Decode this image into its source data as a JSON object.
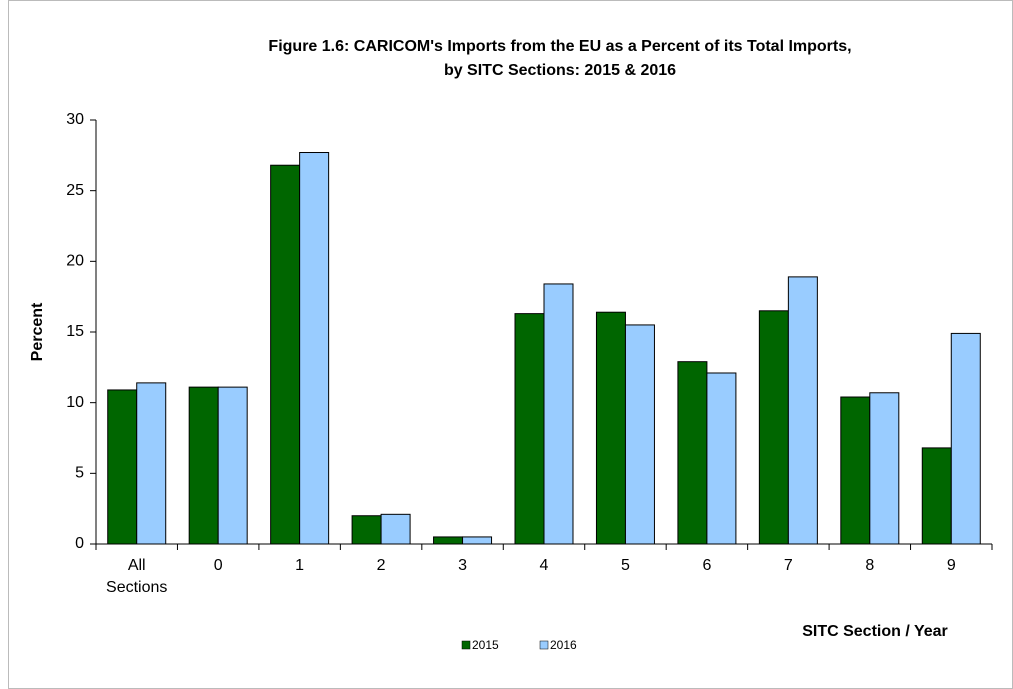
{
  "chart_data": {
    "type": "bar",
    "title": [
      "Figure 1.6: CARICOM's  Imports from the EU as a Percent of its Total Imports,",
      "by SITC Sections: 2015 & 2016"
    ],
    "y_label": "Percent",
    "x_label": "SITC Section / Year",
    "categories": [
      "All Sections",
      "0",
      "1",
      "2",
      "3",
      "4",
      "5",
      "6",
      "7",
      "8",
      "9"
    ],
    "series": [
      {
        "name": "2015",
        "color": "#006600",
        "values": [
          10.9,
          11.1,
          26.8,
          2.0,
          0.5,
          16.3,
          16.4,
          12.9,
          16.5,
          10.4,
          6.8
        ]
      },
      {
        "name": "2016",
        "color": "#99ccff",
        "values": [
          11.4,
          11.1,
          27.7,
          2.1,
          0.5,
          18.4,
          15.5,
          12.1,
          18.9,
          10.7,
          14.9
        ]
      }
    ],
    "ylim": [
      0,
      30
    ],
    "yticks": [
      0,
      5,
      10,
      15,
      20,
      25,
      30
    ],
    "grid": false,
    "legend": "bottom"
  }
}
